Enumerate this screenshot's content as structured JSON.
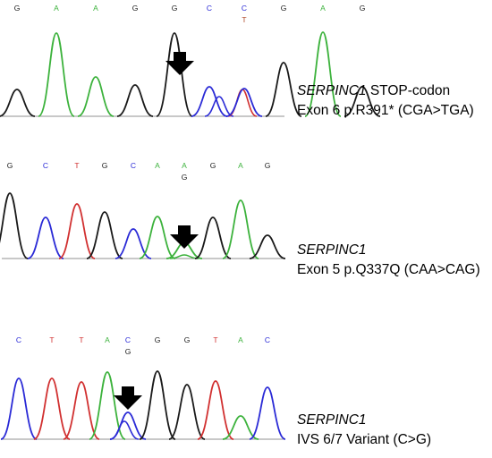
{
  "colors": {
    "A": "#3cb23c",
    "C": "#2a2ad6",
    "G": "#1a1a1a",
    "T": "#d13030",
    "variant": "#1a1a1a",
    "arrow": "#000000"
  },
  "panels": [
    {
      "bases": [
        "G",
        "A",
        "A",
        "G",
        "G",
        "C",
        "C",
        "G",
        "A",
        "G"
      ],
      "variant_index": 6,
      "variant_base": "T",
      "caption": {
        "gene": "SERPINC1",
        "line1_suffix": " STOP-codon",
        "line2": "Exon 6 p.R391* (CGA>TGA)"
      }
    },
    {
      "bases": [
        "G",
        "C",
        "T",
        "G",
        "C",
        "A",
        "A",
        "G",
        "A",
        "G"
      ],
      "variant_index": 6,
      "variant_base": "G",
      "caption": {
        "gene": "SERPINC1",
        "line1_suffix": "",
        "line2": "Exon 5 p.Q337Q (CAA>CAG)"
      }
    },
    {
      "bases": [
        "C",
        "T",
        "T",
        "A",
        "C",
        "G",
        "G",
        "T",
        "A",
        "C"
      ],
      "variant_index": 4,
      "variant_base": "G",
      "caption": {
        "gene": "SERPINC1",
        "line1_suffix": "",
        "line2": "IVS 6/7 Variant (C>G)"
      }
    }
  ]
}
